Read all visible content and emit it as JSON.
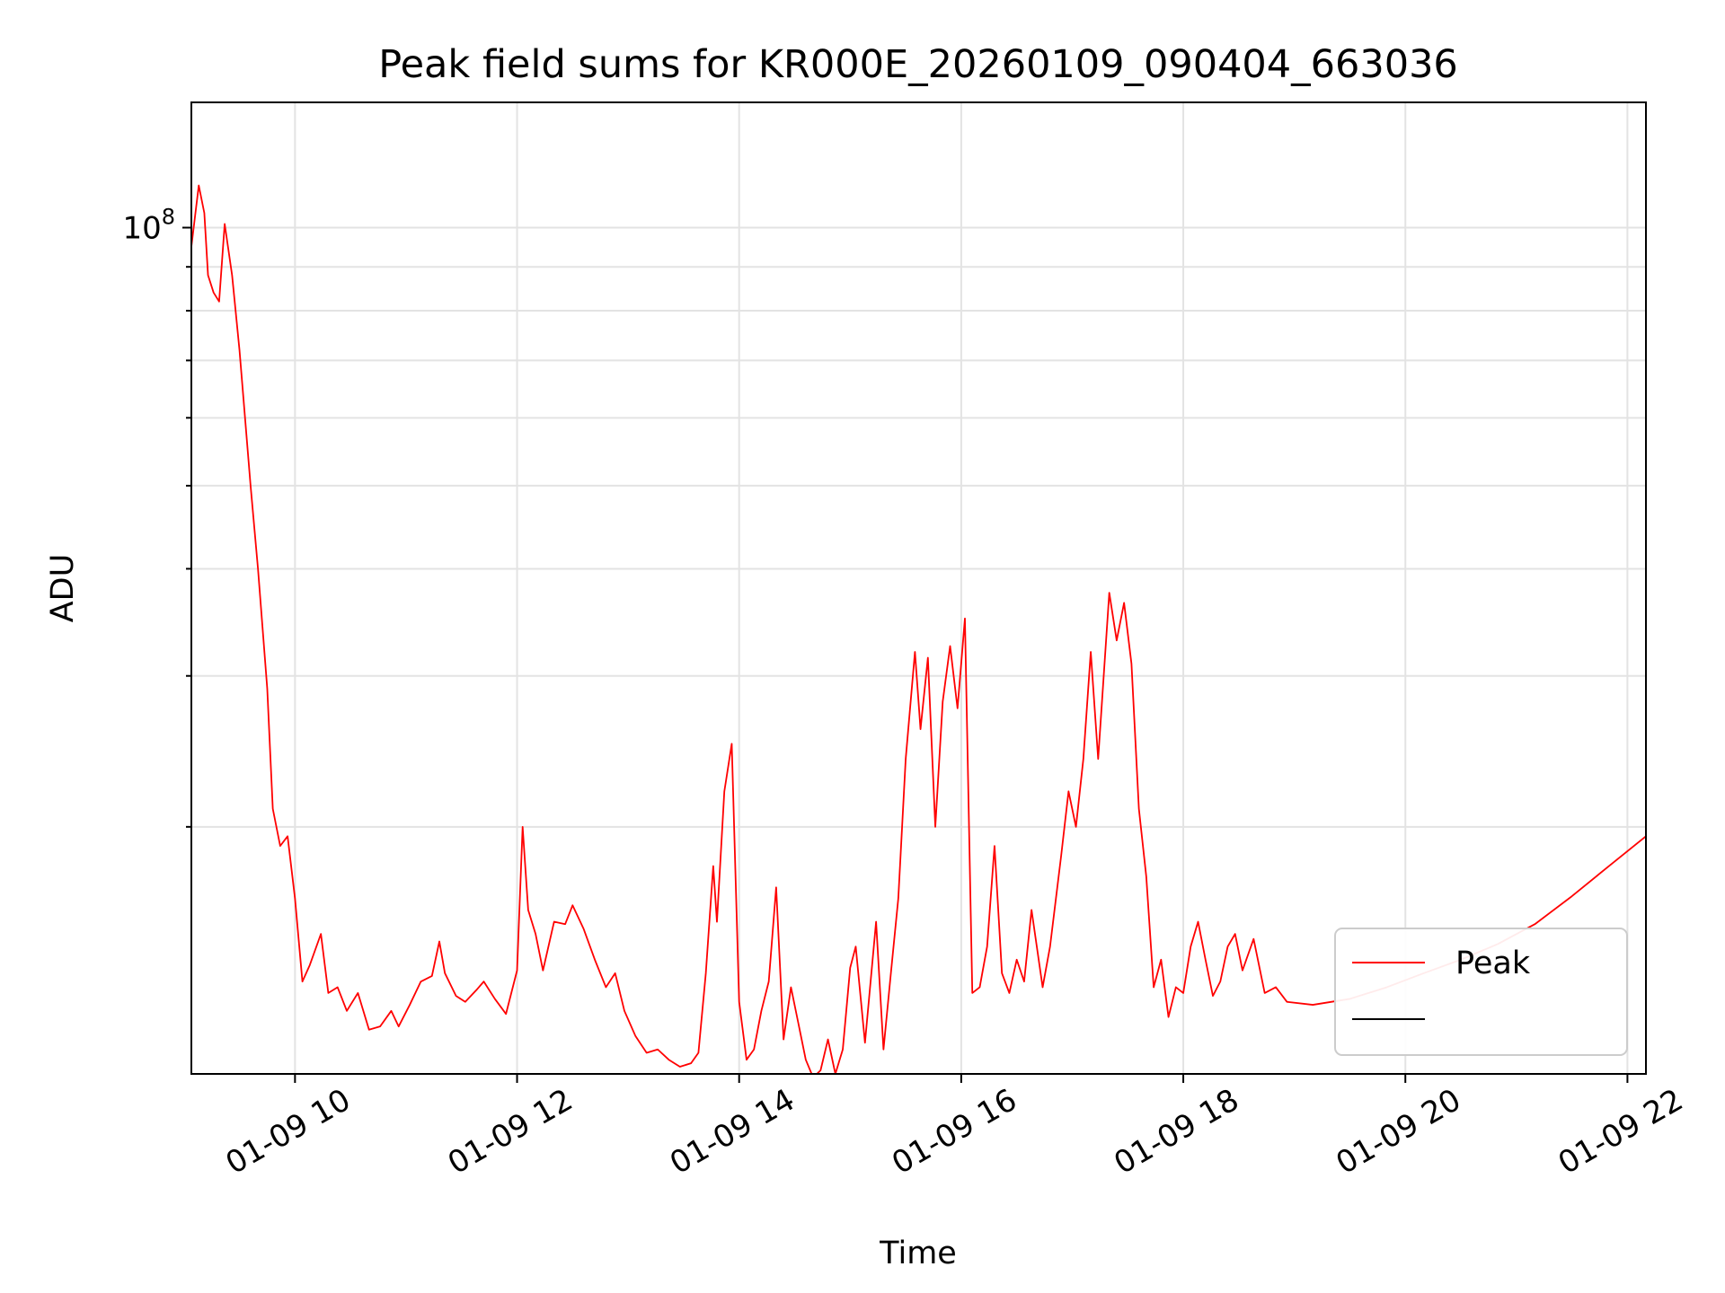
{
  "chart_data": {
    "type": "line",
    "title": "Peak field sums for KR000E_20260109_090404_663036",
    "xlabel": "Time",
    "ylabel": "ADU",
    "x_tick_labels": [
      "01-09 10",
      "01-09 12",
      "01-09 14",
      "01-09 16",
      "01-09 18",
      "01-09 20",
      "01-09 22"
    ],
    "x_tick_values": [
      "2026-01-09T10:00",
      "2026-01-09T12:00",
      "2026-01-09T14:00",
      "2026-01-09T16:00",
      "2026-01-09T18:00",
      "2026-01-09T20:00",
      "2026-01-09T22:00"
    ],
    "xlim": [
      "2026-01-09T09:04",
      "2026-01-09T22:10"
    ],
    "y_scale": "log",
    "ylim": [
      10300000,
      140000000
    ],
    "y_tick_labels": [
      {
        "base": "10",
        "exp": "8",
        "value": 100000000
      }
    ],
    "y_minor_ticks": [
      20000000,
      30000000,
      40000000,
      50000000,
      60000000,
      70000000,
      80000000,
      90000000
    ],
    "grid": true,
    "legend_position": "lower-right",
    "series": [
      {
        "name": "Peak",
        "color": "#ff0000",
        "points": [
          [
            "2026-01-09T09:04",
            95000000
          ],
          [
            "2026-01-09T09:08",
            112000000
          ],
          [
            "2026-01-09T09:11",
            104000000
          ],
          [
            "2026-01-09T09:13",
            88000000
          ],
          [
            "2026-01-09T09:16",
            84000000
          ],
          [
            "2026-01-09T09:19",
            82000000
          ],
          [
            "2026-01-09T09:22",
            101000000
          ],
          [
            "2026-01-09T09:26",
            88000000
          ],
          [
            "2026-01-09T09:30",
            72000000
          ],
          [
            "2026-01-09T09:36",
            50000000
          ],
          [
            "2026-01-09T09:40",
            40000000
          ],
          [
            "2026-01-09T09:45",
            29000000
          ],
          [
            "2026-01-09T09:48",
            21000000
          ],
          [
            "2026-01-09T09:52",
            19000000
          ],
          [
            "2026-01-09T09:56",
            19500000
          ],
          [
            "2026-01-09T10:00",
            16500000
          ],
          [
            "2026-01-09T10:04",
            13200000
          ],
          [
            "2026-01-09T10:08",
            13800000
          ],
          [
            "2026-01-09T10:14",
            15000000
          ],
          [
            "2026-01-09T10:18",
            12800000
          ],
          [
            "2026-01-09T10:23",
            13000000
          ],
          [
            "2026-01-09T10:28",
            12200000
          ],
          [
            "2026-01-09T10:34",
            12800000
          ],
          [
            "2026-01-09T10:40",
            11600000
          ],
          [
            "2026-01-09T10:46",
            11700000
          ],
          [
            "2026-01-09T10:52",
            12200000
          ],
          [
            "2026-01-09T10:56",
            11700000
          ],
          [
            "2026-01-09T11:02",
            12400000
          ],
          [
            "2026-01-09T11:08",
            13200000
          ],
          [
            "2026-01-09T11:14",
            13400000
          ],
          [
            "2026-01-09T11:18",
            14700000
          ],
          [
            "2026-01-09T11:21",
            13500000
          ],
          [
            "2026-01-09T11:27",
            12700000
          ],
          [
            "2026-01-09T11:32",
            12500000
          ],
          [
            "2026-01-09T11:38",
            12900000
          ],
          [
            "2026-01-09T11:42",
            13200000
          ],
          [
            "2026-01-09T11:48",
            12600000
          ],
          [
            "2026-01-09T11:54",
            12100000
          ],
          [
            "2026-01-09T12:00",
            13600000
          ],
          [
            "2026-01-09T12:03",
            20000000
          ],
          [
            "2026-01-09T12:06",
            16000000
          ],
          [
            "2026-01-09T12:10",
            15000000
          ],
          [
            "2026-01-09T12:14",
            13600000
          ],
          [
            "2026-01-09T12:20",
            15500000
          ],
          [
            "2026-01-09T12:26",
            15400000
          ],
          [
            "2026-01-09T12:30",
            16200000
          ],
          [
            "2026-01-09T12:36",
            15200000
          ],
          [
            "2026-01-09T12:42",
            14000000
          ],
          [
            "2026-01-09T12:48",
            13000000
          ],
          [
            "2026-01-09T12:53",
            13500000
          ],
          [
            "2026-01-09T12:58",
            12200000
          ],
          [
            "2026-01-09T13:04",
            11400000
          ],
          [
            "2026-01-09T13:10",
            10900000
          ],
          [
            "2026-01-09T13:16",
            11000000
          ],
          [
            "2026-01-09T13:22",
            10700000
          ],
          [
            "2026-01-09T13:28",
            10500000
          ],
          [
            "2026-01-09T13:34",
            10600000
          ],
          [
            "2026-01-09T13:38",
            10900000
          ],
          [
            "2026-01-09T13:42",
            13500000
          ],
          [
            "2026-01-09T13:46",
            18000000
          ],
          [
            "2026-01-09T13:48",
            15500000
          ],
          [
            "2026-01-09T13:52",
            22000000
          ],
          [
            "2026-01-09T13:56",
            25000000
          ],
          [
            "2026-01-09T14:00",
            12500000
          ],
          [
            "2026-01-09T14:04",
            10700000
          ],
          [
            "2026-01-09T14:08",
            11000000
          ],
          [
            "2026-01-09T14:12",
            12200000
          ],
          [
            "2026-01-09T14:16",
            13200000
          ],
          [
            "2026-01-09T14:20",
            17000000
          ],
          [
            "2026-01-09T14:24",
            11300000
          ],
          [
            "2026-01-09T14:28",
            13000000
          ],
          [
            "2026-01-09T14:32",
            11800000
          ],
          [
            "2026-01-09T14:36",
            10700000
          ],
          [
            "2026-01-09T14:40",
            10200000
          ],
          [
            "2026-01-09T14:44",
            10400000
          ],
          [
            "2026-01-09T14:48",
            11300000
          ],
          [
            "2026-01-09T14:52",
            10300000
          ],
          [
            "2026-01-09T14:56",
            11000000
          ],
          [
            "2026-01-09T15:00",
            13700000
          ],
          [
            "2026-01-09T15:03",
            14500000
          ],
          [
            "2026-01-09T15:08",
            11200000
          ],
          [
            "2026-01-09T15:14",
            15500000
          ],
          [
            "2026-01-09T15:18",
            11000000
          ],
          [
            "2026-01-09T15:22",
            13500000
          ],
          [
            "2026-01-09T15:26",
            16500000
          ],
          [
            "2026-01-09T15:30",
            24000000
          ],
          [
            "2026-01-09T15:35",
            32000000
          ],
          [
            "2026-01-09T15:38",
            26000000
          ],
          [
            "2026-01-09T15:42",
            31500000
          ],
          [
            "2026-01-09T15:46",
            20000000
          ],
          [
            "2026-01-09T15:50",
            28000000
          ],
          [
            "2026-01-09T15:54",
            32500000
          ],
          [
            "2026-01-09T15:58",
            27500000
          ],
          [
            "2026-01-09T16:02",
            35000000
          ],
          [
            "2026-01-09T16:06",
            12800000
          ],
          [
            "2026-01-09T16:10",
            13000000
          ],
          [
            "2026-01-09T16:14",
            14500000
          ],
          [
            "2026-01-09T16:18",
            19000000
          ],
          [
            "2026-01-09T16:22",
            13500000
          ],
          [
            "2026-01-09T16:26",
            12800000
          ],
          [
            "2026-01-09T16:30",
            14000000
          ],
          [
            "2026-01-09T16:34",
            13200000
          ],
          [
            "2026-01-09T16:38",
            16000000
          ],
          [
            "2026-01-09T16:44",
            13000000
          ],
          [
            "2026-01-09T16:48",
            14500000
          ],
          [
            "2026-01-09T16:54",
            18500000
          ],
          [
            "2026-01-09T16:58",
            22000000
          ],
          [
            "2026-01-09T17:02",
            20000000
          ],
          [
            "2026-01-09T17:06",
            24000000
          ],
          [
            "2026-01-09T17:10",
            32000000
          ],
          [
            "2026-01-09T17:14",
            24000000
          ],
          [
            "2026-01-09T17:20",
            37500000
          ],
          [
            "2026-01-09T17:24",
            33000000
          ],
          [
            "2026-01-09T17:28",
            36500000
          ],
          [
            "2026-01-09T17:32",
            31000000
          ],
          [
            "2026-01-09T17:36",
            21000000
          ],
          [
            "2026-01-09T17:40",
            17500000
          ],
          [
            "2026-01-09T17:44",
            13000000
          ],
          [
            "2026-01-09T17:48",
            14000000
          ],
          [
            "2026-01-09T17:52",
            12000000
          ],
          [
            "2026-01-09T17:56",
            13000000
          ],
          [
            "2026-01-09T18:00",
            12800000
          ],
          [
            "2026-01-09T18:04",
            14500000
          ],
          [
            "2026-01-09T18:08",
            15500000
          ],
          [
            "2026-01-09T18:12",
            14000000
          ],
          [
            "2026-01-09T18:16",
            12700000
          ],
          [
            "2026-01-09T18:20",
            13200000
          ],
          [
            "2026-01-09T18:24",
            14500000
          ],
          [
            "2026-01-09T18:28",
            15000000
          ],
          [
            "2026-01-09T18:32",
            13600000
          ],
          [
            "2026-01-09T18:38",
            14800000
          ],
          [
            "2026-01-09T18:44",
            12800000
          ],
          [
            "2026-01-09T18:50",
            13000000
          ],
          [
            "2026-01-09T18:56",
            12500000
          ],
          [
            "2026-01-09T19:10",
            12400000
          ],
          [
            "2026-01-09T19:30",
            12600000
          ],
          [
            "2026-01-09T19:50",
            13000000
          ],
          [
            "2026-01-09T20:10",
            13500000
          ],
          [
            "2026-01-09T20:30",
            14000000
          ],
          [
            "2026-01-09T20:50",
            14600000
          ],
          [
            "2026-01-09T21:10",
            15400000
          ],
          [
            "2026-01-09T21:30",
            16600000
          ],
          [
            "2026-01-09T21:50",
            18000000
          ],
          [
            "2026-01-09T22:10",
            19500000
          ]
        ]
      }
    ]
  }
}
